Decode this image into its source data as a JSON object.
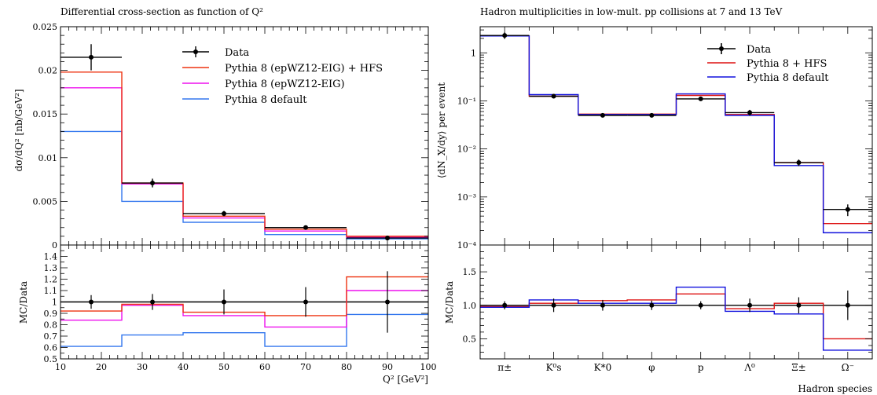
{
  "chart_data": [
    {
      "type": "line",
      "title": "Differential cross-section as function of Q²",
      "ylabel": "dσ/dQ² [nb/GeV²]",
      "xlabel": "Q² [GeV²]",
      "ratio_ylabel": "MC/Data",
      "xlim": [
        10,
        100
      ],
      "ylim": [
        0,
        0.025
      ],
      "ratio_ylim": [
        0.5,
        1.5
      ],
      "x_ticks": [
        10,
        20,
        30,
        40,
        50,
        60,
        70,
        80,
        90,
        100
      ],
      "x_tick_labels": [
        "10",
        "20",
        "30",
        "40",
        "50",
        "60",
        "70",
        "80",
        "90",
        "100"
      ],
      "y_ticks": [
        0,
        0.005,
        0.01,
        0.015,
        0.02,
        0.025
      ],
      "y_tick_labels": [
        "0",
        "0.005",
        "0.01",
        "0.015",
        "0.02",
        "0.025"
      ],
      "ratio_ticks": [
        0.5,
        0.6,
        0.7,
        0.8,
        0.9,
        1,
        1.1,
        1.2,
        1.3,
        1.4
      ],
      "ratio_tick_labels": [
        "0.5",
        "0.6",
        "0.7",
        "0.8",
        "0.9",
        "1",
        "1.1",
        "1.2",
        "1.3",
        "1.4"
      ],
      "legend_position": "top-right",
      "bins": [
        [
          10,
          25
        ],
        [
          25,
          40
        ],
        [
          40,
          60
        ],
        [
          60,
          80
        ],
        [
          80,
          100
        ]
      ],
      "data": {
        "name": "Data",
        "x": [
          17.5,
          32.5,
          50,
          70,
          90
        ],
        "y": [
          0.0215,
          0.0071,
          0.0036,
          0.002,
          0.0008
        ],
        "yerr": [
          0.0015,
          0.0005,
          0.0003,
          0.0002,
          0.0002
        ],
        "xerr_bins": true,
        "ratio_err": [
          0.06,
          0.07,
          0.11,
          0.13,
          0.27
        ]
      },
      "series": [
        {
          "name": "Pythia 8 (epWZ12-EIG) + HFS",
          "color": "#ee3311",
          "values": [
            0.0198,
            0.0071,
            0.0033,
            0.0018,
            0.001
          ],
          "ratio": [
            0.92,
            0.98,
            0.91,
            0.88,
            1.22
          ]
        },
        {
          "name": "Pythia 8 (epWZ12-EIG)",
          "color": "#ee11ee",
          "values": [
            0.018,
            0.007,
            0.0031,
            0.0016,
            0.0009
          ],
          "ratio": [
            0.84,
            0.97,
            0.88,
            0.78,
            1.1
          ]
        },
        {
          "name": "Pythia 8 default",
          "color": "#3377ee",
          "values": [
            0.013,
            0.005,
            0.0026,
            0.0012,
            0.0007
          ],
          "ratio": [
            0.61,
            0.71,
            0.73,
            0.61,
            0.89
          ]
        }
      ]
    },
    {
      "type": "line",
      "title": "Hadron multiplicities in low-mult. pp collisions at 7 and 13 TeV",
      "ylabel": "⟨dN_X/dy⟩ per event",
      "xlabel": "Hadron species",
      "ratio_ylabel": "MC/Data",
      "yscale": "log",
      "ylim": [
        0.0001,
        3.5
      ],
      "ratio_ylim": [
        0.2,
        1.9
      ],
      "categories": [
        "π±",
        "K⁰s",
        "K*0",
        "φ",
        "p",
        "Λ⁰",
        "Ξ±",
        "Ω⁻"
      ],
      "y_tick_labels": [
        "1",
        "10⁻¹",
        "10⁻²",
        "10⁻³",
        "10⁻⁴"
      ],
      "y_ticks": [
        1,
        0.1,
        0.01,
        0.001,
        0.0001
      ],
      "ratio_ticks": [
        0.5,
        1.0,
        1.5
      ],
      "ratio_tick_labels": [
        "0.5",
        "1.0",
        "1.5"
      ],
      "legend_position": "top-right",
      "data": {
        "name": "Data",
        "y": [
          2.3,
          0.125,
          0.05,
          0.05,
          0.11,
          0.057,
          0.0052,
          0.00055
        ],
        "yerr_up": [
          0.35,
          0.01,
          0.004,
          0.004,
          0.01,
          0.008,
          0.0008,
          0.00015
        ],
        "ratio_err": [
          0.06,
          0.1,
          0.08,
          0.07,
          0.06,
          0.1,
          0.12,
          0.22
        ]
      },
      "series": [
        {
          "name": "Pythia 8 + HFS",
          "color": "#dd1111",
          "values": [
            2.25,
            0.125,
            0.053,
            0.053,
            0.13,
            0.052,
            0.0052,
            0.00028
          ],
          "ratio": [
            0.98,
            1.03,
            1.07,
            1.08,
            1.17,
            0.95,
            1.03,
            0.5
          ]
        },
        {
          "name": "Pythia 8 default",
          "color": "#1111dd",
          "values": [
            2.25,
            0.135,
            0.052,
            0.052,
            0.14,
            0.05,
            0.0045,
            0.00018
          ],
          "ratio": [
            0.97,
            1.08,
            1.03,
            1.03,
            1.27,
            0.91,
            0.87,
            0.33
          ]
        }
      ]
    }
  ]
}
